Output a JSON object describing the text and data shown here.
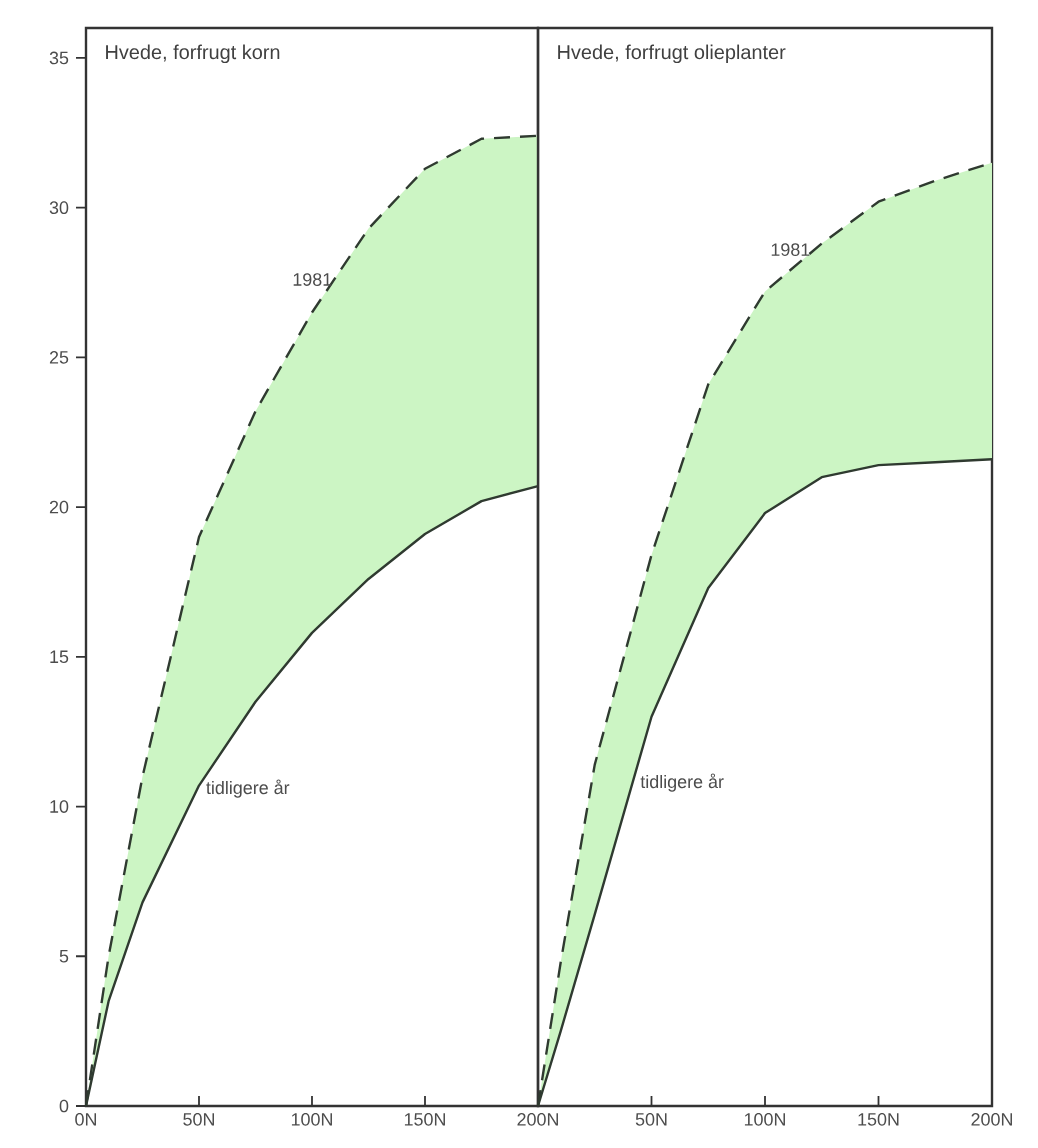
{
  "chart_data": [
    {
      "type": "line",
      "title": "Hvede, forfrugt korn",
      "x": [
        0,
        10,
        25,
        50,
        75,
        100,
        125,
        150,
        175,
        200
      ],
      "xlim": [
        0,
        200
      ],
      "ylim": [
        0,
        36
      ],
      "xticks": [
        {
          "value": 0,
          "label": "0N"
        },
        {
          "value": 50,
          "label": "50N"
        },
        {
          "value": 100,
          "label": "100N"
        },
        {
          "value": 150,
          "label": "150N"
        },
        {
          "value": 200,
          "label": "200N"
        }
      ],
      "yticks": [
        0,
        5,
        10,
        15,
        20,
        25,
        30,
        35
      ],
      "series": [
        {
          "color": "#2f3a30",
          "line_style": "dashed",
          "values": [
            0,
            5,
            11,
            19,
            23.2,
            26.5,
            29.3,
            31.3,
            32.3,
            32.4
          ],
          "lower": [
            0,
            3.5,
            6.8,
            10.7,
            13.5,
            15.8,
            17.6,
            19.1,
            20.2,
            20.7
          ],
          "upper": [
            0,
            5,
            11,
            19,
            23.2,
            26.5,
            29.3,
            31.3,
            32.3,
            32.4
          ]
        },
        {
          "color": "#2f3a30",
          "line_style": "solid",
          "values": [
            0,
            3.5,
            6.8,
            10.7,
            13.5,
            15.8,
            17.6,
            19.1,
            20.2,
            20.7
          ]
        }
      ],
      "annotations": [
        {
          "text": "1981",
          "x": 110,
          "y": 27.6
        },
        {
          "text": "tidligere år",
          "x": 52,
          "y": 10.6
        }
      ],
      "marker": "none"
    },
    {
      "type": "line",
      "title": "Hvede, forfrugt olieplanter",
      "x": [
        0,
        10,
        25,
        50,
        75,
        100,
        125,
        150,
        175,
        200
      ],
      "xlim": [
        0,
        200
      ],
      "ylim": [
        0,
        36
      ],
      "xticks": [
        {
          "value": 0,
          "label": null
        },
        {
          "value": 50,
          "label": "50N"
        },
        {
          "value": 100,
          "label": "100N"
        },
        {
          "value": 150,
          "label": "150N"
        },
        {
          "value": 200,
          "label": "200N"
        }
      ],
      "tick_labels": "x",
      "series": [
        {
          "color": "#2f3a30",
          "line_style": "dashed",
          "values": [
            0,
            4.8,
            11.4,
            18.4,
            24.1,
            27.2,
            28.8,
            30.2,
            30.9,
            31.5
          ],
          "lower": [
            0,
            2.5,
            6.4,
            13,
            17.3,
            19.8,
            21,
            21.4,
            21.5,
            21.6
          ],
          "upper": [
            0,
            4.8,
            11.4,
            18.4,
            24.1,
            27.2,
            28.8,
            30.2,
            30.9,
            31.5
          ]
        },
        {
          "color": "#2f3a30",
          "line_style": "solid",
          "values": [
            0,
            2.5,
            6.4,
            13,
            17.3,
            19.8,
            21,
            21.4,
            21.5,
            21.6
          ]
        }
      ],
      "annotations": [
        {
          "text": "1981",
          "x": 121,
          "y": 28.6
        },
        {
          "text": "tidligere år",
          "x": 44,
          "y": 10.8
        }
      ],
      "marker": "none"
    }
  ]
}
